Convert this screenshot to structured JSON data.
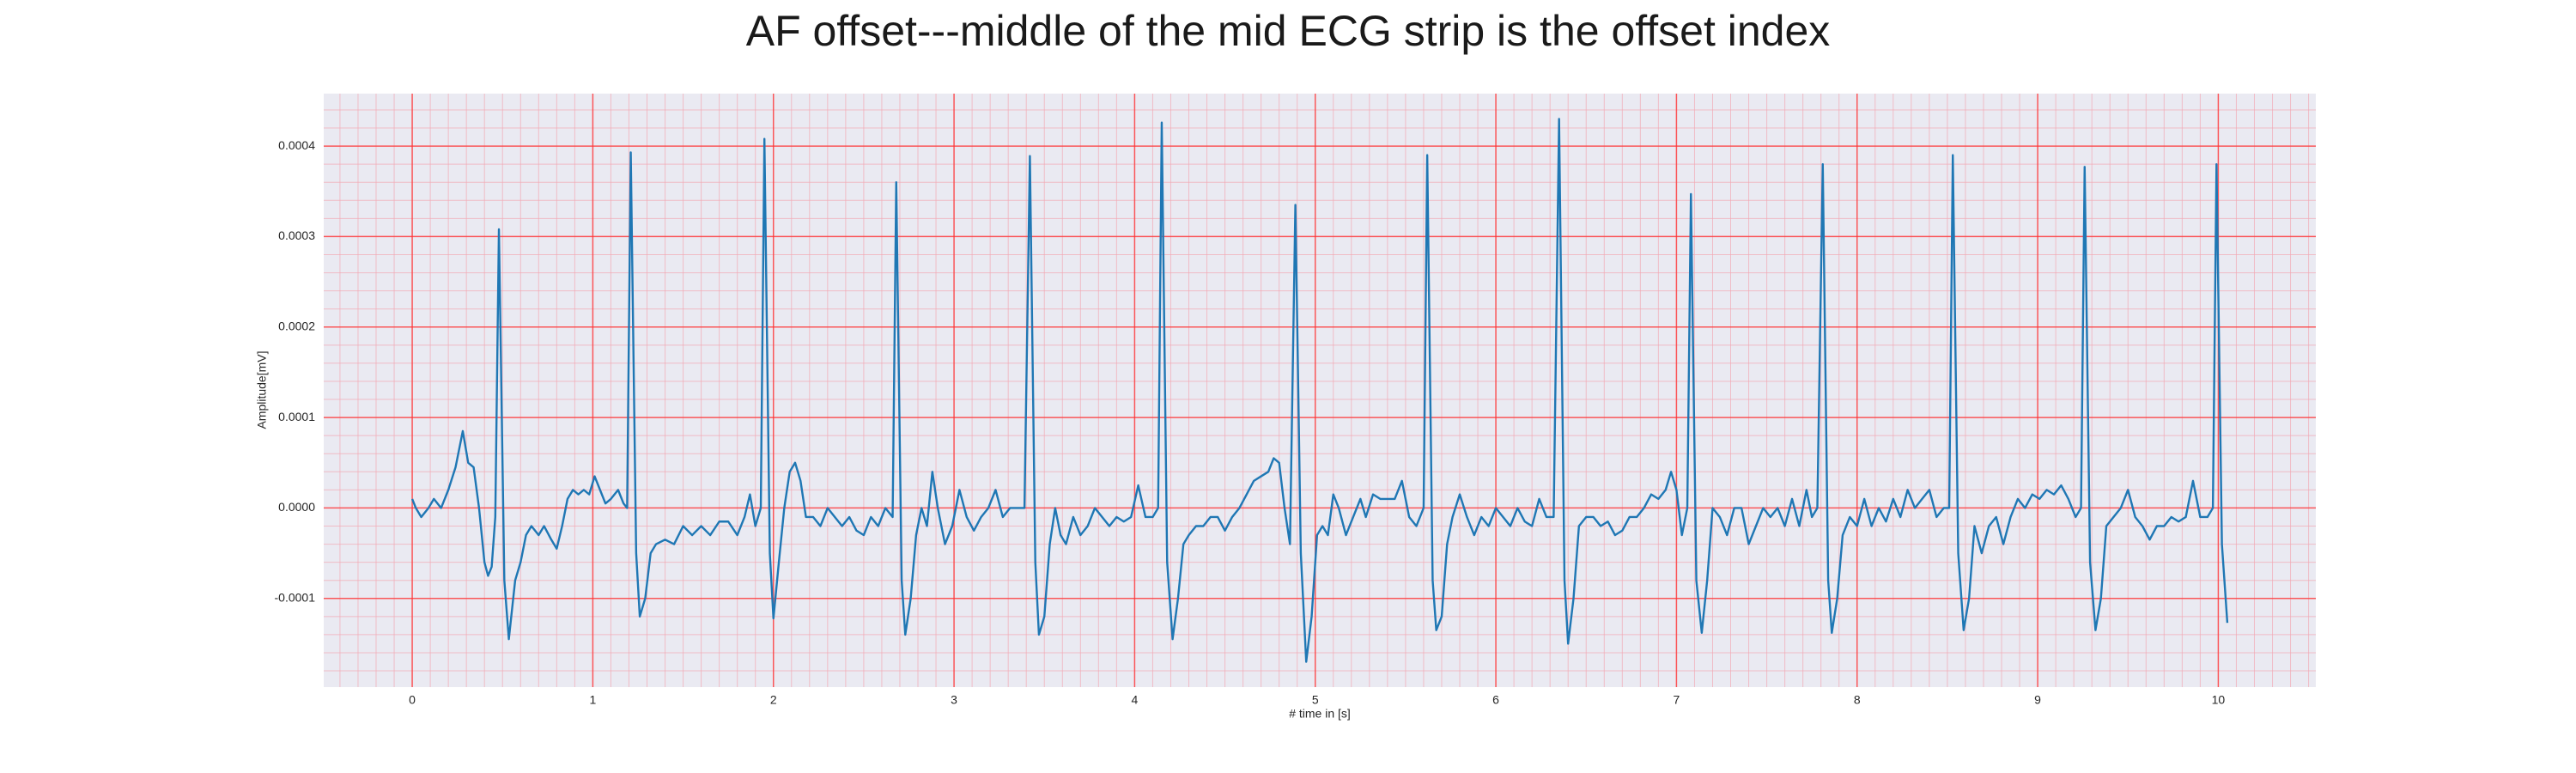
{
  "chart_data": {
    "type": "line",
    "title": "AF offset---middle of the mid ECG strip is the offset index",
    "xlabel": "# time in [s]",
    "ylabel": "Amplitude[mV]",
    "color": "#1f77b4",
    "grid": true,
    "minor_grid": true,
    "xlim": [
      -0.49,
      10.54
    ],
    "ylim": [
      -0.000198,
      0.000458
    ],
    "xticks": [
      0,
      1,
      2,
      3,
      4,
      5,
      6,
      7,
      8,
      9,
      10
    ],
    "yticks": [
      {
        "value": -0.0001,
        "label": "-0.0001"
      },
      {
        "value": 0,
        "label": "0.0000"
      },
      {
        "value": 0.0001,
        "label": "0.0001"
      },
      {
        "value": 0.0002,
        "label": "0.0002"
      },
      {
        "value": 0.0003,
        "label": "0.0003"
      },
      {
        "value": 0.0004,
        "label": "0.0004"
      }
    ],
    "x": [
      0,
      0.02,
      0.05,
      0.09,
      0.12,
      0.16,
      0.2,
      0.24,
      0.28,
      0.31,
      0.34,
      0.37,
      0.4,
      0.42,
      0.44,
      0.46,
      0.48,
      0.51,
      0.535,
      0.57,
      0.6,
      0.63,
      0.66,
      0.7,
      0.73,
      0.77,
      0.8,
      0.83,
      0.86,
      0.89,
      0.92,
      0.95,
      0.98,
      1.01,
      1.04,
      1.07,
      1.1,
      1.14,
      1.17,
      1.19,
      1.21,
      1.24,
      1.26,
      1.29,
      1.32,
      1.35,
      1.4,
      1.45,
      1.5,
      1.55,
      1.6,
      1.65,
      1.7,
      1.75,
      1.8,
      1.84,
      1.87,
      1.9,
      1.93,
      1.95,
      1.98,
      2,
      2.03,
      2.06,
      2.09,
      2.12,
      2.15,
      2.18,
      2.22,
      2.26,
      2.3,
      2.34,
      2.38,
      2.42,
      2.46,
      2.5,
      2.54,
      2.58,
      2.62,
      2.66,
      2.68,
      2.71,
      2.73,
      2.76,
      2.79,
      2.82,
      2.85,
      2.88,
      2.91,
      2.95,
      2.99,
      3.03,
      3.07,
      3.11,
      3.15,
      3.19,
      3.23,
      3.27,
      3.31,
      3.35,
      3.39,
      3.42,
      3.45,
      3.47,
      3.5,
      3.53,
      3.56,
      3.59,
      3.62,
      3.66,
      3.7,
      3.74,
      3.78,
      3.82,
      3.86,
      3.9,
      3.94,
      3.98,
      4.02,
      4.06,
      4.1,
      4.13,
      4.15,
      4.18,
      4.21,
      4.24,
      4.27,
      4.3,
      4.34,
      4.38,
      4.42,
      4.46,
      4.5,
      4.54,
      4.58,
      4.62,
      4.66,
      4.7,
      4.74,
      4.77,
      4.8,
      4.83,
      4.86,
      4.89,
      4.92,
      4.95,
      4.98,
      5.01,
      5.04,
      5.07,
      5.1,
      5.13,
      5.17,
      5.21,
      5.25,
      5.28,
      5.32,
      5.36,
      5.4,
      5.44,
      5.48,
      5.52,
      5.56,
      5.6,
      5.62,
      5.65,
      5.67,
      5.7,
      5.73,
      5.76,
      5.8,
      5.84,
      5.88,
      5.92,
      5.96,
      6,
      6.04,
      6.08,
      6.12,
      6.16,
      6.2,
      6.24,
      6.28,
      6.32,
      6.35,
      6.38,
      6.4,
      6.43,
      6.46,
      6.5,
      6.54,
      6.58,
      6.62,
      6.66,
      6.7,
      6.74,
      6.78,
      6.82,
      6.86,
      6.9,
      6.94,
      6.97,
      7,
      7.03,
      7.06,
      7.08,
      7.11,
      7.14,
      7.17,
      7.2,
      7.24,
      7.28,
      7.32,
      7.36,
      7.4,
      7.44,
      7.48,
      7.52,
      7.56,
      7.6,
      7.64,
      7.68,
      7.72,
      7.75,
      7.78,
      7.81,
      7.84,
      7.86,
      7.89,
      7.92,
      7.96,
      8,
      8.04,
      8.08,
      8.12,
      8.16,
      8.2,
      8.24,
      8.28,
      8.32,
      8.36,
      8.4,
      8.44,
      8.48,
      8.51,
      8.53,
      8.56,
      8.59,
      8.62,
      8.65,
      8.69,
      8.73,
      8.77,
      8.81,
      8.85,
      8.89,
      8.93,
      8.97,
      9.01,
      9.05,
      9.09,
      9.13,
      9.17,
      9.21,
      9.24,
      9.26,
      9.29,
      9.32,
      9.35,
      9.38,
      9.42,
      9.46,
      9.5,
      9.54,
      9.58,
      9.62,
      9.66,
      9.7,
      9.74,
      9.78,
      9.82,
      9.86,
      9.9,
      9.94,
      9.97,
      9.99,
      10.02,
      10.05
    ],
    "values": [
      1e-05,
      0,
      -1e-05,
      0,
      1e-05,
      0,
      2e-05,
      4.5e-05,
      8.5e-05,
      5e-05,
      4.5e-05,
      0,
      -6e-05,
      -7.5e-05,
      -6.5e-05,
      -1e-05,
      0.000308,
      -8e-05,
      -0.000145,
      -8e-05,
      -6e-05,
      -3e-05,
      -2e-05,
      -3e-05,
      -2e-05,
      -3.5e-05,
      -4.5e-05,
      -2e-05,
      1e-05,
      2e-05,
      1.5e-05,
      2e-05,
      1.5e-05,
      3.5e-05,
      2e-05,
      5e-06,
      1e-05,
      2e-05,
      5e-06,
      0,
      0.000393,
      -5e-05,
      -0.00012,
      -0.0001,
      -5e-05,
      -4e-05,
      -3.5e-05,
      -4e-05,
      -2e-05,
      -3e-05,
      -2e-05,
      -3e-05,
      -1.5e-05,
      -1.5e-05,
      -3e-05,
      -1e-05,
      1.5e-05,
      -2e-05,
      0,
      0.000408,
      -5e-05,
      -0.000122,
      -6e-05,
      0,
      4e-05,
      5e-05,
      3e-05,
      -1e-05,
      -1e-05,
      -2e-05,
      0,
      -1e-05,
      -2e-05,
      -1e-05,
      -2.5e-05,
      -3e-05,
      -1e-05,
      -2e-05,
      0,
      -1e-05,
      0.00036,
      -8e-05,
      -0.00014,
      -0.0001,
      -3e-05,
      0,
      -2e-05,
      4e-05,
      0,
      -4e-05,
      -2e-05,
      2e-05,
      -1e-05,
      -2.5e-05,
      -1e-05,
      0,
      2e-05,
      -1e-05,
      0,
      0,
      0,
      0.000389,
      -6e-05,
      -0.00014,
      -0.00012,
      -4e-05,
      0,
      -3e-05,
      -4e-05,
      -1e-05,
      -3e-05,
      -2e-05,
      0,
      -1e-05,
      -2e-05,
      -1e-05,
      -1.5e-05,
      -1e-05,
      2.5e-05,
      -1e-05,
      -1e-05,
      0,
      0.000426,
      -6e-05,
      -0.000145,
      -0.0001,
      -4e-05,
      -3e-05,
      -2e-05,
      -2e-05,
      -1e-05,
      -1e-05,
      -2.5e-05,
      -1e-05,
      0,
      1.5e-05,
      3e-05,
      3.5e-05,
      4e-05,
      5.5e-05,
      5e-05,
      0,
      -4e-05,
      0.000335,
      -5e-05,
      -0.00017,
      -0.00012,
      -3e-05,
      -2e-05,
      -3e-05,
      1.5e-05,
      0,
      -3e-05,
      -1e-05,
      1e-05,
      -1e-05,
      1.5e-05,
      1e-05,
      1e-05,
      1e-05,
      3e-05,
      -1e-05,
      -2e-05,
      0,
      0.00039,
      -8e-05,
      -0.000135,
      -0.00012,
      -4e-05,
      -1e-05,
      1.5e-05,
      -1e-05,
      -3e-05,
      -1e-05,
      -2e-05,
      0,
      -1e-05,
      -2e-05,
      0,
      -1.5e-05,
      -2e-05,
      1e-05,
      -1e-05,
      -1e-05,
      0.00043,
      -8e-05,
      -0.00015,
      -0.0001,
      -2e-05,
      -1e-05,
      -1e-05,
      -2e-05,
      -1.5e-05,
      -3e-05,
      -2.5e-05,
      -1e-05,
      -1e-05,
      0,
      1.5e-05,
      1e-05,
      2e-05,
      4e-05,
      2e-05,
      -3e-05,
      0,
      0.000347,
      -8e-05,
      -0.000138,
      -8e-05,
      0,
      -1e-05,
      -3e-05,
      0,
      0,
      -4e-05,
      -2e-05,
      0,
      -1e-05,
      0,
      -2e-05,
      1e-05,
      -2e-05,
      2e-05,
      -1e-05,
      0,
      0.00038,
      -8e-05,
      -0.000138,
      -0.0001,
      -3e-05,
      -1e-05,
      -2e-05,
      1e-05,
      -2e-05,
      0,
      -1.5e-05,
      1e-05,
      -1e-05,
      2e-05,
      0,
      1e-05,
      2e-05,
      -1e-05,
      0,
      0,
      0.00039,
      -5e-05,
      -0.000135,
      -0.0001,
      -2e-05,
      -5e-05,
      -2e-05,
      -1e-05,
      -4e-05,
      -1e-05,
      1e-05,
      0,
      1.5e-05,
      1e-05,
      2e-05,
      1.5e-05,
      2.5e-05,
      1e-05,
      -1e-05,
      0,
      0.000377,
      -6e-05,
      -0.000135,
      -0.0001,
      -2e-05,
      -1e-05,
      0,
      2e-05,
      -1e-05,
      -2e-05,
      -3.5e-05,
      -2e-05,
      -2e-05,
      -1e-05,
      -1.5e-05,
      -1e-05,
      3e-05,
      -1e-05,
      -1e-05,
      0,
      0.00038,
      -4e-05,
      -0.000127
    ]
  }
}
